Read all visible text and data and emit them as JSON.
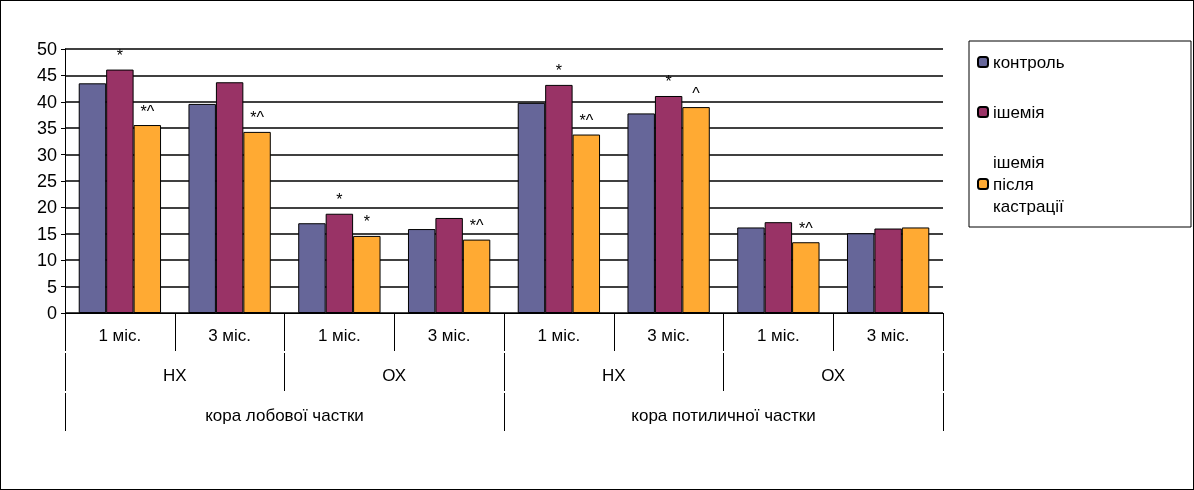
{
  "chart_data": {
    "type": "bar",
    "categories": [
      "1 міс.",
      "3 міс.",
      "1 міс.",
      "3 міс.",
      "1 міс.",
      "3 міс.",
      "1 міс.",
      "3 міс."
    ],
    "annotations": [
      "НХ",
      "ОХ",
      "НХ",
      "ОХ",
      "кора лобової частки",
      "кора потиличної частки"
    ],
    "series": [
      {
        "name": "контроль",
        "color": "#666699",
        "values": [
          43.5,
          39.6,
          17.0,
          15.9,
          39.8,
          37.8,
          16.2,
          15.1
        ]
      },
      {
        "name": "ішемія",
        "color": "#993366",
        "values": [
          46.1,
          43.7,
          18.8,
          18.0,
          43.2,
          41.1,
          17.2,
          16.0
        ],
        "value_labels": [
          "*",
          null,
          "*",
          null,
          "*",
          "*",
          null,
          null
        ]
      },
      {
        "name": "ішемія після кастрації",
        "color": "#ffaa33",
        "values": [
          35.6,
          34.3,
          14.6,
          13.9,
          33.8,
          39.0,
          13.4,
          16.2
        ],
        "value_labels": [
          "*^",
          "*^",
          "*",
          "*^",
          "*^",
          "^",
          "*^",
          null
        ]
      }
    ],
    "ylim": [
      0,
      50
    ],
    "yticks": [
      0,
      5,
      10,
      15,
      20,
      25,
      30,
      35,
      40,
      45,
      50
    ],
    "grid": "y",
    "legend": "right"
  }
}
